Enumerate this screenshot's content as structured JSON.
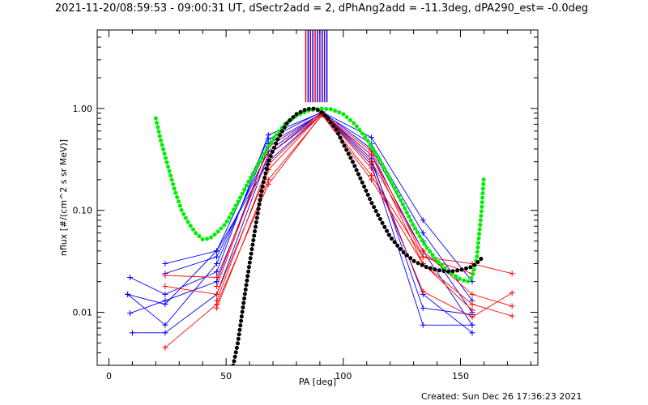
{
  "chart_data": {
    "type": "line",
    "title": "2021-11-20/08:59:53 - 09:00:31 UT, dSectr2add = 2, dPhAng2add = -11.3deg, dPA290_est= -0.0deg",
    "xlabel": "PA [deg]",
    "ylabel": "nflux [#/(cm^2 s sr MeV)]",
    "footer": "Created: Sun Dec 26 17:36:23 2021",
    "xlim": [
      -5,
      183
    ],
    "ylim_log10": [
      -2.52,
      0.77
    ],
    "y_scale": "log",
    "x_ticks": [
      {
        "v": 0,
        "label": "0"
      },
      {
        "v": 50,
        "label": "50"
      },
      {
        "v": 100,
        "label": "100"
      },
      {
        "v": 150,
        "label": "150"
      }
    ],
    "y_ticks": [
      {
        "v": 0.01,
        "label": "0.01"
      },
      {
        "v": 0.1,
        "label": "0.10"
      },
      {
        "v": 1,
        "label": "1.00"
      }
    ],
    "minor_x_step": 10,
    "colors": {
      "blue": "#0000ff",
      "red": "#ff0000",
      "green": "#00ee00",
      "black": "#000000",
      "purple": "#800080"
    },
    "vertical_marks": {
      "x": [
        84,
        85,
        86,
        87,
        88,
        89,
        90,
        91,
        92,
        93
      ],
      "colors": [
        "#ff0000",
        "#0000ff",
        "#800080",
        "#0000ff",
        "#ff0000",
        "#0000ff",
        "#800080",
        "#0000ff",
        "#800080",
        "#0000ff"
      ],
      "y_from": 1.15
    },
    "series": [
      {
        "color": "#0000ff",
        "points": [
          [
            9,
            0.022
          ],
          [
            24,
            0.015
          ],
          [
            46,
            0.025
          ],
          [
            68,
            0.55
          ],
          [
            91,
            0.92
          ],
          [
            112,
            0.52
          ],
          [
            134,
            0.08
          ],
          [
            155,
            0.02
          ]
        ]
      },
      {
        "color": "#0000ff",
        "points": [
          [
            8,
            0.015
          ],
          [
            24,
            0.0075
          ],
          [
            46,
            0.03
          ],
          [
            68,
            0.45
          ],
          [
            91,
            0.9
          ],
          [
            112,
            0.45
          ],
          [
            134,
            0.06
          ],
          [
            155,
            0.013
          ]
        ]
      },
      {
        "color": "#0000ff",
        "points": [
          [
            8,
            0.015
          ],
          [
            24,
            0.012
          ],
          [
            46,
            0.04
          ],
          [
            68,
            0.5
          ],
          [
            91,
            0.93
          ],
          [
            112,
            0.4
          ],
          [
            134,
            0.05
          ],
          [
            155,
            0.01
          ]
        ]
      },
      {
        "color": "#0000ff",
        "points": [
          [
            9,
            0.0098
          ],
          [
            24,
            0.013
          ],
          [
            46,
            0.02
          ],
          [
            68,
            0.42
          ],
          [
            91,
            0.9
          ],
          [
            112,
            0.35
          ],
          [
            134,
            0.04
          ],
          [
            155,
            0.0075
          ]
        ]
      },
      {
        "color": "#0000ff",
        "points": [
          [
            10,
            0.0063
          ],
          [
            24,
            0.0063
          ],
          [
            46,
            0.015
          ],
          [
            68,
            0.35
          ],
          [
            91,
            0.92
          ],
          [
            112,
            0.3
          ],
          [
            134,
            0.015
          ],
          [
            155,
            0.0063
          ]
        ]
      },
      {
        "color": "#0000ff",
        "points": [
          [
            24,
            0.03
          ],
          [
            46,
            0.04
          ],
          [
            68,
            0.3
          ],
          [
            91,
            0.9
          ],
          [
            112,
            0.28
          ],
          [
            134,
            0.0075
          ],
          [
            155,
            0.0075
          ]
        ]
      },
      {
        "color": "#0000ff",
        "points": [
          [
            24,
            0.024
          ],
          [
            46,
            0.035
          ],
          [
            68,
            0.38
          ],
          [
            91,
            0.92
          ],
          [
            112,
            0.32
          ],
          [
            134,
            0.011
          ],
          [
            155,
            0.0095
          ]
        ]
      },
      {
        "color": "#ff0000",
        "points": [
          [
            24,
            0.0045
          ],
          [
            46,
            0.012
          ],
          [
            68,
            0.18
          ],
          [
            91,
            0.88
          ],
          [
            112,
            0.22
          ],
          [
            134,
            0.035
          ],
          [
            155,
            0.03
          ],
          [
            172,
            0.024
          ]
        ]
      },
      {
        "color": "#ff0000",
        "points": [
          [
            24,
            0.018
          ],
          [
            46,
            0.015
          ],
          [
            68,
            0.25
          ],
          [
            91,
            0.9
          ],
          [
            112,
            0.3
          ],
          [
            134,
            0.04
          ],
          [
            155,
            0.015
          ],
          [
            172,
            0.0115
          ]
        ]
      },
      {
        "color": "#ff0000",
        "points": [
          [
            24,
            0.023
          ],
          [
            46,
            0.022
          ],
          [
            68,
            0.35
          ],
          [
            91,
            0.88
          ],
          [
            112,
            0.35
          ],
          [
            134,
            0.03
          ],
          [
            155,
            0.012
          ],
          [
            172,
            0.0092
          ]
        ]
      },
      {
        "color": "#ff0000",
        "points": [
          [
            46,
            0.013
          ],
          [
            68,
            0.28
          ],
          [
            91,
            0.9
          ],
          [
            112,
            0.26
          ],
          [
            134,
            0.016
          ],
          [
            155,
            0.009
          ],
          [
            172,
            0.0155
          ]
        ]
      },
      {
        "color": "#ff0000",
        "points": [
          [
            46,
            0.018
          ],
          [
            68,
            0.42
          ],
          [
            91,
            0.9
          ],
          [
            112,
            0.38
          ],
          [
            134,
            0.035
          ],
          [
            155,
            0.024
          ]
        ]
      },
      {
        "color": "#ff0000",
        "points": [
          [
            46,
            0.011
          ],
          [
            68,
            0.2
          ],
          [
            91,
            0.86
          ],
          [
            112,
            0.2
          ],
          [
            134,
            0.03
          ],
          [
            155,
            0.0105
          ]
        ]
      }
    ],
    "fit_curves": [
      {
        "color": "#00ee00",
        "points": [
          [
            20,
            0.8
          ],
          [
            22,
            0.5
          ],
          [
            25,
            0.28
          ],
          [
            28,
            0.16
          ],
          [
            31,
            0.1
          ],
          [
            34,
            0.075
          ],
          [
            37,
            0.06
          ],
          [
            40,
            0.052
          ],
          [
            43,
            0.053
          ],
          [
            46,
            0.06
          ],
          [
            50,
            0.075
          ],
          [
            55,
            0.12
          ],
          [
            60,
            0.2
          ],
          [
            65,
            0.32
          ],
          [
            70,
            0.5
          ],
          [
            75,
            0.7
          ],
          [
            80,
            0.85
          ],
          [
            85,
            0.95
          ],
          [
            90,
            1.0
          ],
          [
            95,
            0.98
          ],
          [
            100,
            0.88
          ],
          [
            105,
            0.7
          ],
          [
            110,
            0.5
          ],
          [
            115,
            0.33
          ],
          [
            120,
            0.2
          ],
          [
            125,
            0.12
          ],
          [
            130,
            0.07
          ],
          [
            135,
            0.045
          ],
          [
            140,
            0.032
          ],
          [
            145,
            0.025
          ],
          [
            150,
            0.021
          ],
          [
            153,
            0.02
          ],
          [
            155,
            0.022
          ],
          [
            157,
            0.035
          ],
          [
            159,
            0.1
          ],
          [
            160,
            0.22
          ]
        ]
      },
      {
        "color": "#000000",
        "points": [
          [
            53,
            0.003
          ],
          [
            55,
            0.005
          ],
          [
            58,
            0.015
          ],
          [
            60,
            0.03
          ],
          [
            63,
            0.08
          ],
          [
            65,
            0.15
          ],
          [
            68,
            0.3
          ],
          [
            72,
            0.5
          ],
          [
            76,
            0.72
          ],
          [
            80,
            0.88
          ],
          [
            84,
            0.98
          ],
          [
            87,
            1.0
          ],
          [
            90,
            0.95
          ],
          [
            93,
            0.82
          ],
          [
            97,
            0.62
          ],
          [
            100,
            0.45
          ],
          [
            104,
            0.3
          ],
          [
            108,
            0.19
          ],
          [
            112,
            0.12
          ],
          [
            116,
            0.08
          ],
          [
            120,
            0.055
          ],
          [
            125,
            0.04
          ],
          [
            130,
            0.032
          ],
          [
            135,
            0.028
          ],
          [
            140,
            0.026
          ],
          [
            145,
            0.025
          ],
          [
            150,
            0.026
          ],
          [
            155,
            0.028
          ],
          [
            158,
            0.032
          ],
          [
            160,
            0.036
          ]
        ]
      }
    ]
  }
}
